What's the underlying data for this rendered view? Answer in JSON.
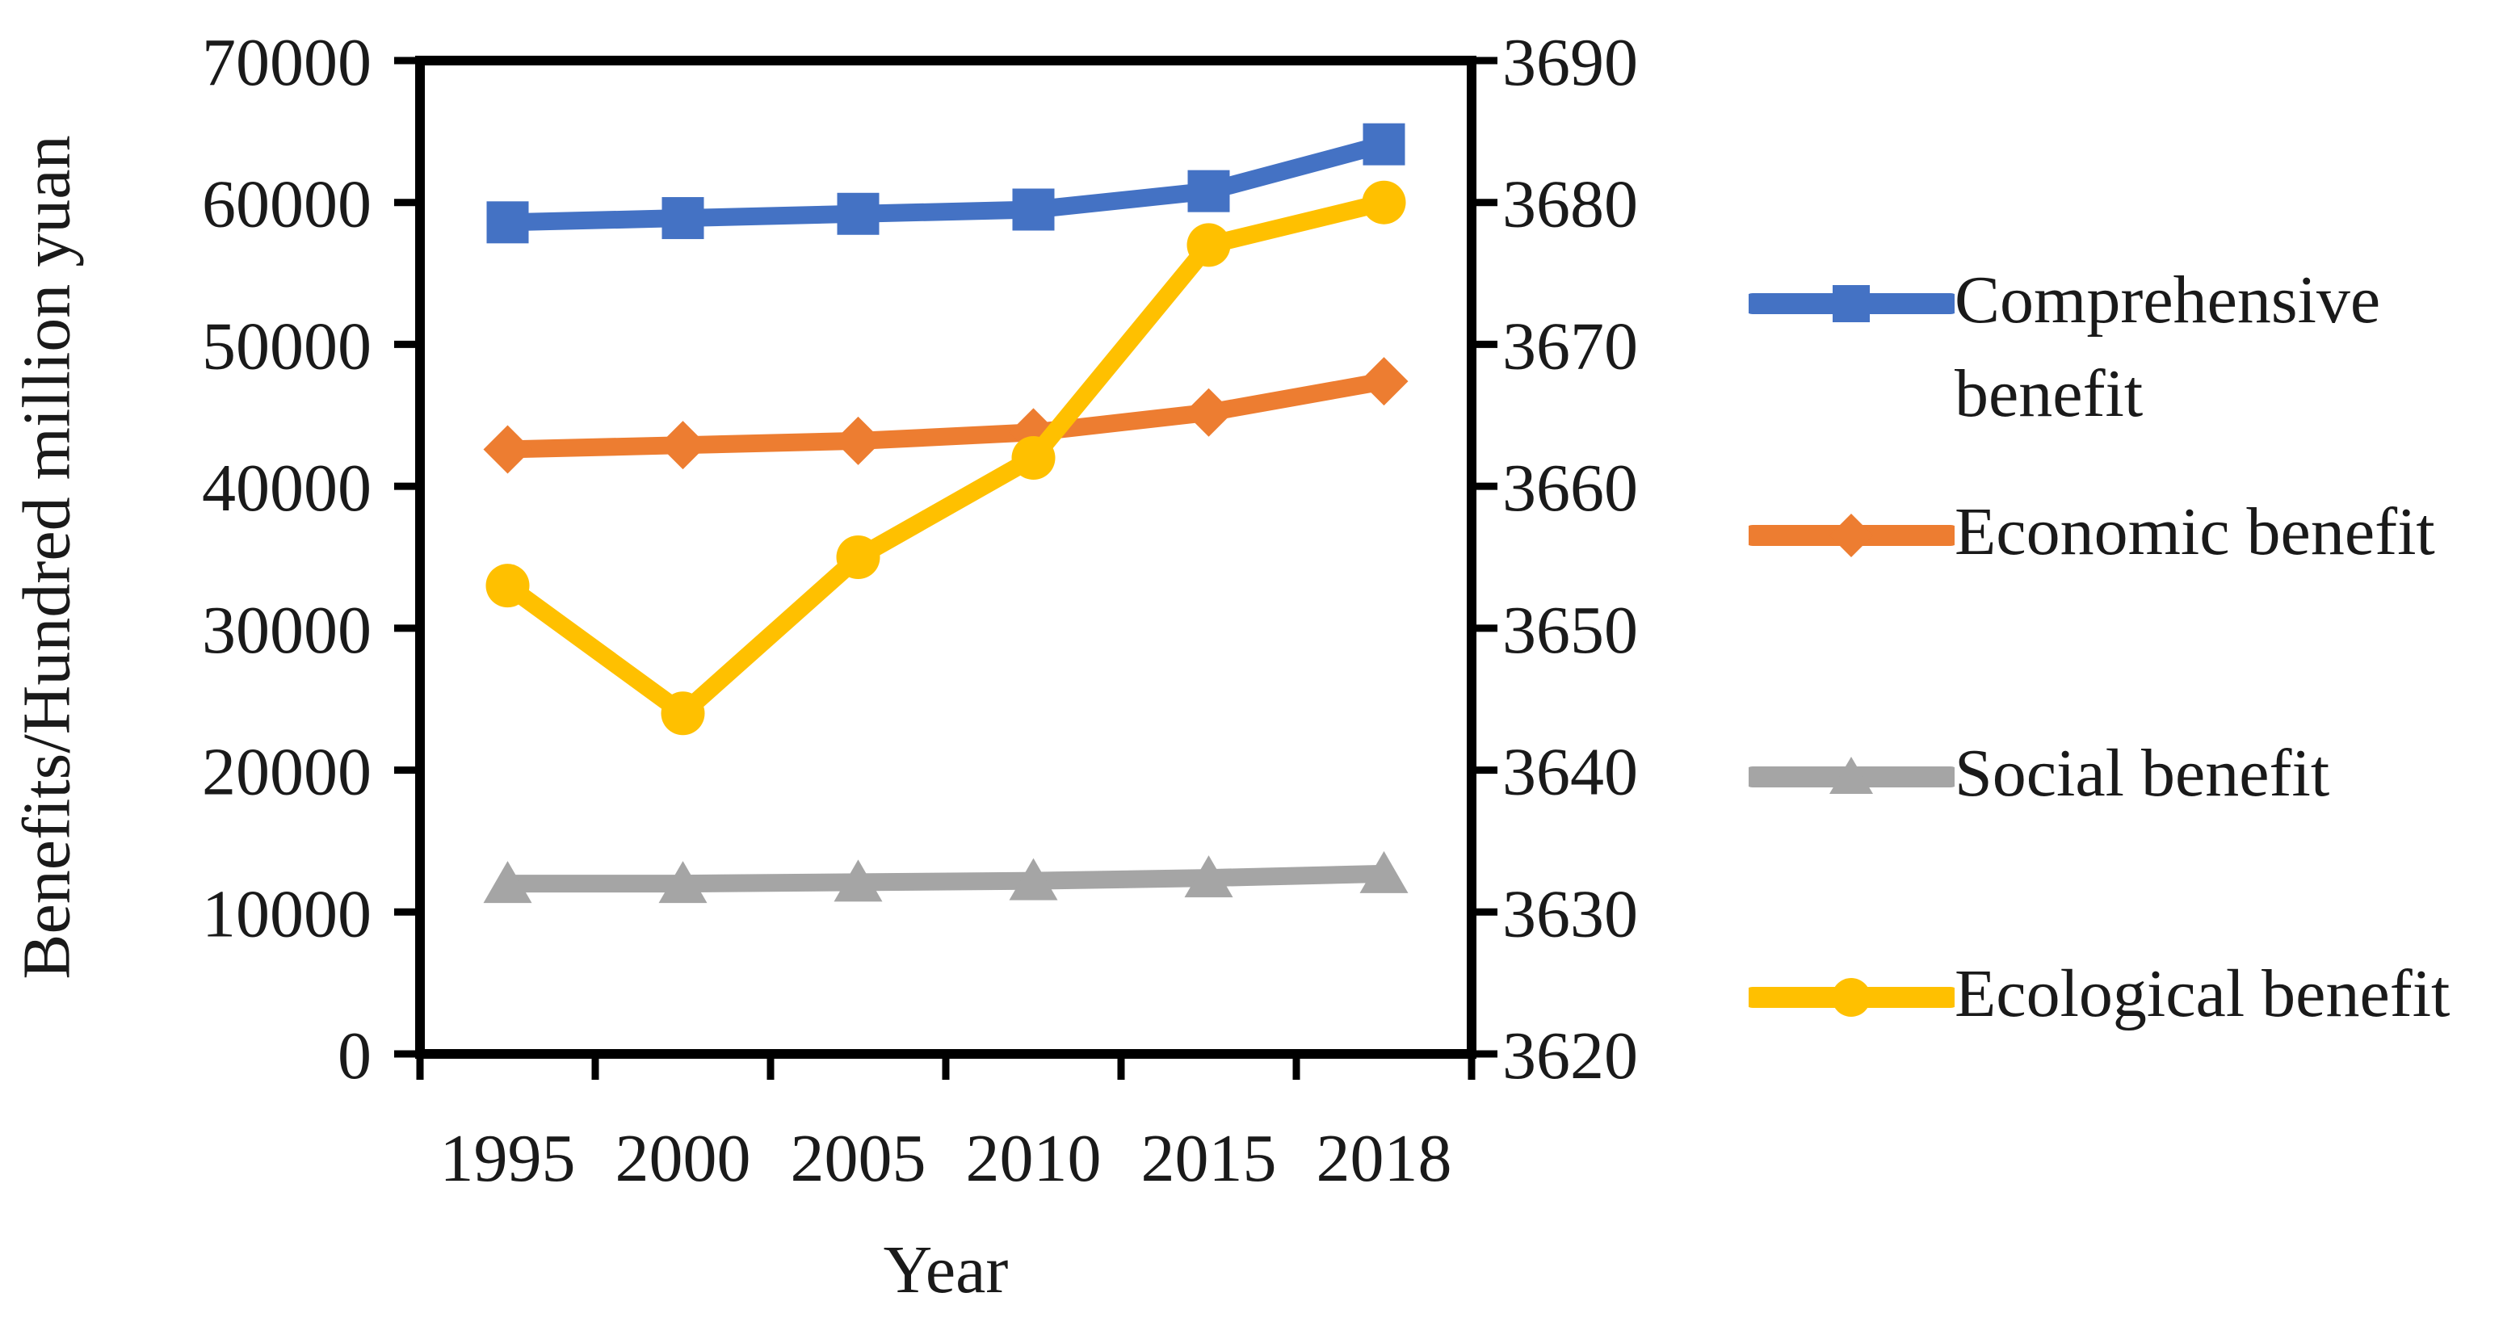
{
  "chart_data": {
    "type": "line",
    "title": "",
    "xlabel": "Year",
    "ylabel": "Benefits/Hundred million yuan",
    "categories": [
      "1995",
      "2000",
      "2005",
      "2010",
      "2015",
      "2018"
    ],
    "left_axis": {
      "min": 0,
      "max": 70000,
      "step": 10000,
      "tick_labels_top_to_bottom": [
        "70000",
        "60000",
        "50000",
        "40000",
        "30000",
        "20000",
        "10000",
        "0"
      ]
    },
    "right_axis": {
      "min": 3620,
      "max": 3690,
      "step": 10,
      "tick_labels_top_to_bottom": [
        "3690",
        "3680",
        "3670",
        "3660",
        "3650",
        "3640",
        "3630",
        "3620"
      ]
    },
    "grid": false,
    "legend_position": "right",
    "series": [
      {
        "name": "Comprehensive benefit",
        "legend_lines": [
          "Comprehensive",
          "benefit"
        ],
        "axis": "left",
        "color": "#4472C4",
        "marker": "square",
        "values": [
          58600,
          58900,
          59200,
          59500,
          60800,
          64100
        ]
      },
      {
        "name": "Economic benefit",
        "legend_lines": [
          "Economic benefit"
        ],
        "axis": "left",
        "color": "#ED7D31",
        "marker": "diamond",
        "values": [
          42600,
          42900,
          43200,
          43800,
          45200,
          47400
        ]
      },
      {
        "name": "Social benefit",
        "legend_lines": [
          "Social benefit"
        ],
        "axis": "left",
        "color": "#A5A5A5",
        "marker": "triangle",
        "values": [
          12000,
          12000,
          12100,
          12200,
          12400,
          12700
        ]
      },
      {
        "name": "Ecological benefit",
        "legend_lines": [
          "Ecological benefit"
        ],
        "axis": "right",
        "color": "#FFC000",
        "marker": "circle",
        "values": [
          3653,
          3644,
          3655,
          3662,
          3677,
          3680
        ]
      }
    ]
  }
}
